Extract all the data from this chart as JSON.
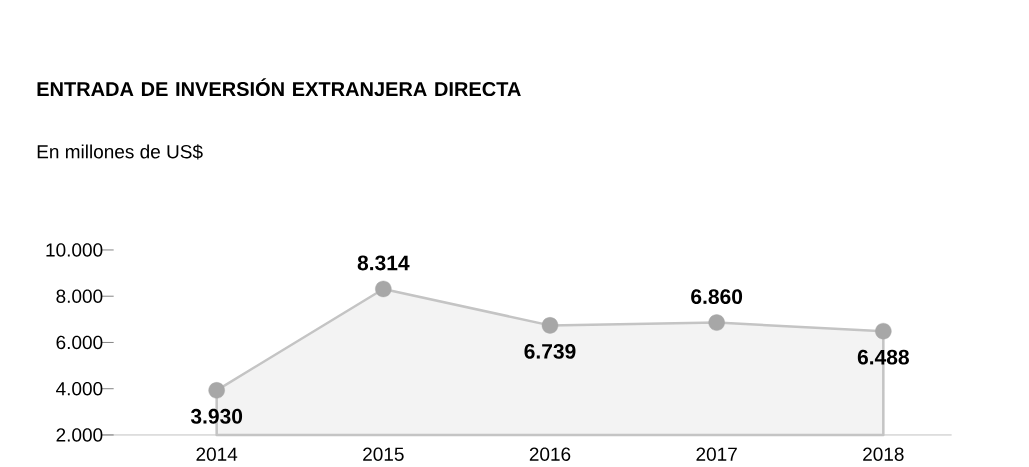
{
  "chart_data": {
    "type": "area",
    "title": "ENTRADA DE INVERSIÓN EXTRANJERA DIRECTA",
    "subtitle": "En millones de US$",
    "categories": [
      "2014",
      "2015",
      "2016",
      "2017",
      "2018"
    ],
    "values": [
      3930,
      8314,
      6739,
      6860,
      6488
    ],
    "value_labels": [
      "3.930",
      "8.314",
      "6.739",
      "6.860",
      "6.488"
    ],
    "color": "#c4c4c4",
    "marker": "circle",
    "ylim": [
      2000,
      10000
    ],
    "yticks": [
      {
        "value": 2000,
        "label": "2.000"
      },
      {
        "value": 4000,
        "label": "4.000"
      },
      {
        "value": 6000,
        "label": "6.000"
      },
      {
        "value": 8000,
        "label": "8.000"
      },
      {
        "value": 10000,
        "label": "10.000"
      }
    ]
  }
}
